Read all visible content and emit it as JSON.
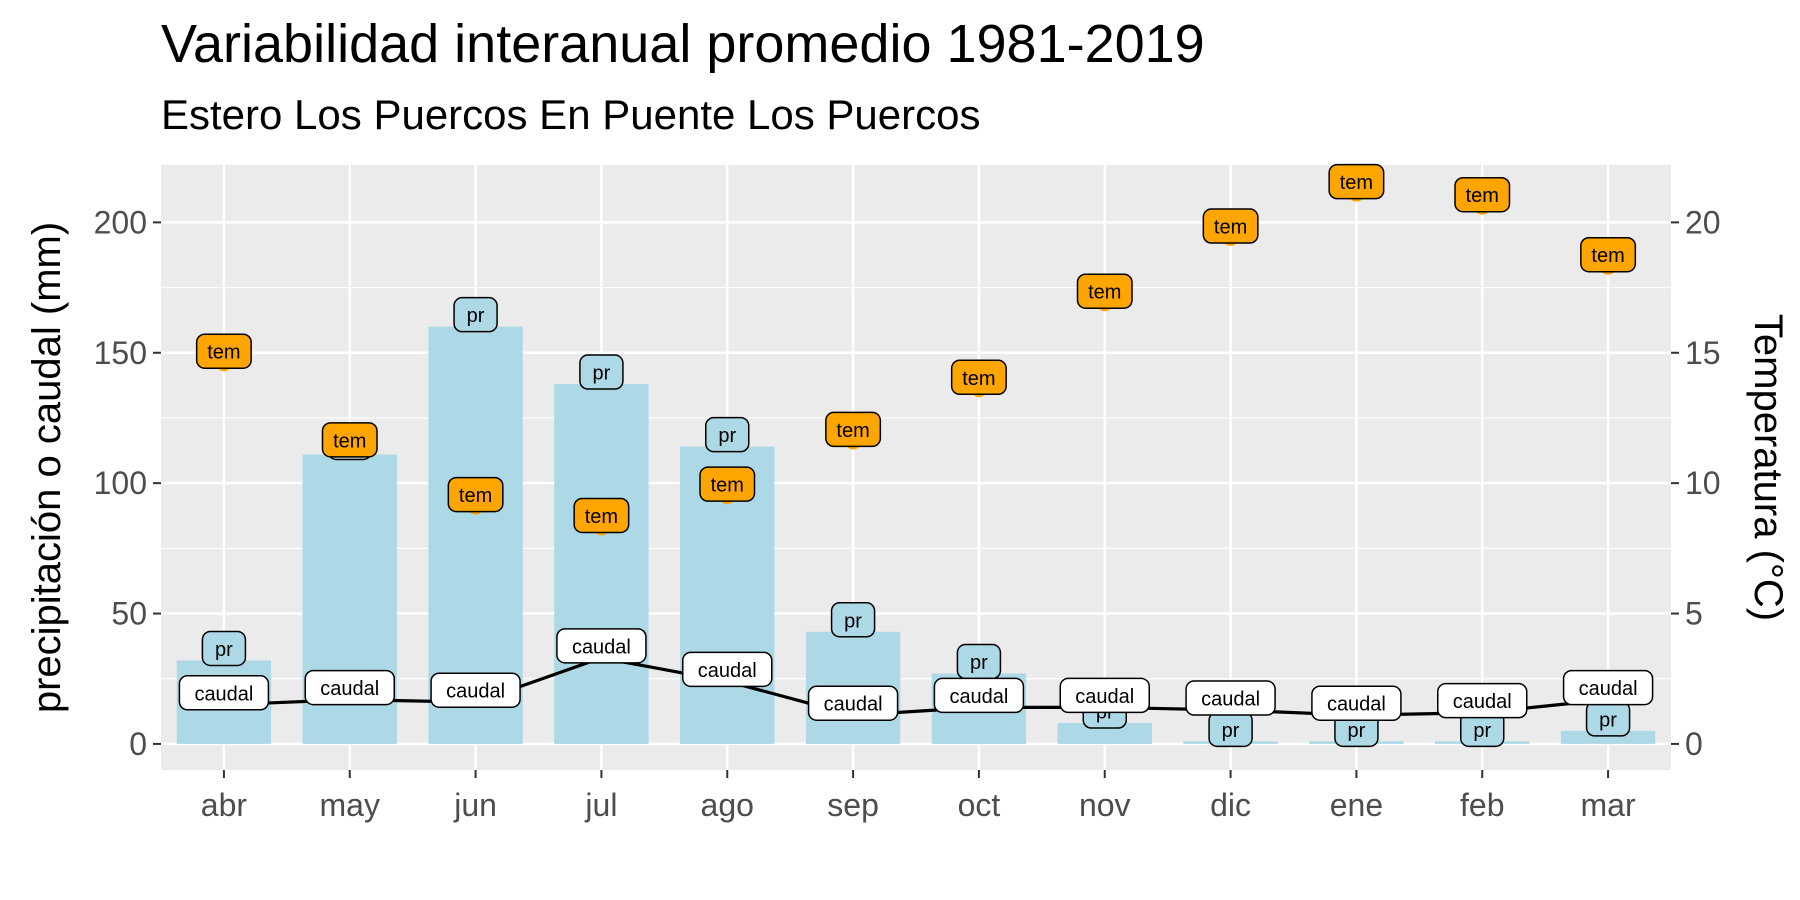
{
  "chart_data": {
    "type": "bar",
    "title": "Variabilidad interanual promedio 1981-2019",
    "subtitle": "Estero Los Puercos En Puente Los Puercos",
    "ylabel": "precipitación o caudal (mm)",
    "ylabel_right": "Temperatura (°C)",
    "categories": [
      "abr",
      "may",
      "jun",
      "jul",
      "ago",
      "sep",
      "oct",
      "nov",
      "dic",
      "ene",
      "feb",
      "mar"
    ],
    "ylim": [
      -10,
      222
    ],
    "ylim_right": [
      -1,
      22.2
    ],
    "yticks": [
      0,
      50,
      100,
      150,
      200
    ],
    "yticks_right": [
      0,
      5,
      10,
      15,
      20
    ],
    "grid": true,
    "colors": {
      "pr": "#ADD8E6",
      "tem": "#FFA500",
      "caudal": "#000000",
      "panel": "#EBEBEB"
    },
    "series": [
      {
        "name": "pr",
        "axis": "left",
        "mark": "bar",
        "label": "pr",
        "values": [
          32,
          111,
          160,
          138,
          114,
          43,
          27,
          8,
          1,
          1,
          1,
          5
        ]
      },
      {
        "name": "caudal",
        "axis": "left",
        "mark": "line",
        "label": "caudal",
        "values": [
          15,
          17,
          16,
          33,
          24,
          11,
          14,
          14,
          13,
          11,
          12,
          17
        ]
      },
      {
        "name": "tem",
        "axis": "right",
        "mark": "point",
        "label": "tem",
        "values": [
          14.6,
          11.2,
          9.1,
          8.3,
          9.5,
          11.6,
          13.6,
          16.9,
          19.4,
          21.1,
          20.6,
          18.3
        ]
      }
    ]
  }
}
